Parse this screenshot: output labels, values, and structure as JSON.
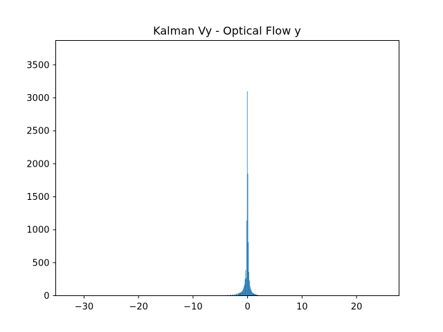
{
  "chart_data": {
    "type": "bar",
    "title": "Kalman Vy - Optical Flow y",
    "xlabel": "",
    "ylabel": "",
    "xlim": [
      -35.2,
      27.8
    ],
    "ylim": [
      0,
      3870
    ],
    "grid": false,
    "legend": "none",
    "bar_color": "#1f77b4",
    "x_ticks": [
      {
        "value": -30,
        "label": "−30"
      },
      {
        "value": -20,
        "label": "−20"
      },
      {
        "value": -10,
        "label": "−10"
      },
      {
        "value": 0,
        "label": "0"
      },
      {
        "value": 10,
        "label": "10"
      },
      {
        "value": 20,
        "label": "20"
      }
    ],
    "y_ticks": [
      {
        "value": 0,
        "label": "0"
      },
      {
        "value": 500,
        "label": "500"
      },
      {
        "value": 1000,
        "label": "1000"
      },
      {
        "value": 1500,
        "label": "1500"
      },
      {
        "value": 2000,
        "label": "2000"
      },
      {
        "value": 2500,
        "label": "2500"
      },
      {
        "value": 3000,
        "label": "3000"
      },
      {
        "value": 3500,
        "label": "3500"
      }
    ],
    "bins": [
      {
        "x0": -5.7,
        "x1": -5.5,
        "count": 4
      },
      {
        "x0": -5.1,
        "x1": -4.9,
        "count": 5
      },
      {
        "x0": -4.6,
        "x1": -4.4,
        "count": 6
      },
      {
        "x0": -4.1,
        "x1": -3.9,
        "count": 8
      },
      {
        "x0": -3.7,
        "x1": -3.5,
        "count": 10
      },
      {
        "x0": -3.2,
        "x1": -3.0,
        "count": 14
      },
      {
        "x0": -2.8,
        "x1": -2.6,
        "count": 18
      },
      {
        "x0": -2.4,
        "x1": -2.2,
        "count": 22
      },
      {
        "x0": -2.1,
        "x1": -1.9,
        "count": 28
      },
      {
        "x0": -1.8,
        "x1": -1.6,
        "count": 34
      },
      {
        "x0": -1.6,
        "x1": -1.4,
        "count": 40
      },
      {
        "x0": -1.4,
        "x1": -1.2,
        "count": 48
      },
      {
        "x0": -1.2,
        "x1": -1.0,
        "count": 60
      },
      {
        "x0": -1.0,
        "x1": -0.9,
        "count": 75
      },
      {
        "x0": -0.9,
        "x1": -0.8,
        "count": 90
      },
      {
        "x0": -0.8,
        "x1": -0.7,
        "count": 110
      },
      {
        "x0": -0.7,
        "x1": -0.6,
        "count": 140
      },
      {
        "x0": -0.6,
        "x1": -0.5,
        "count": 170
      },
      {
        "x0": -0.5,
        "x1": -0.4,
        "count": 250
      },
      {
        "x0": -0.4,
        "x1": -0.3,
        "count": 390
      },
      {
        "x0": -0.3,
        "x1": -0.2,
        "count": 270
      },
      {
        "x0": -0.2,
        "x1": -0.1,
        "count": 1140
      },
      {
        "x0": -0.1,
        "x1": 0.0,
        "count": 3100
      },
      {
        "x0": 0.0,
        "x1": 0.1,
        "count": 1850
      },
      {
        "x0": 0.1,
        "x1": 0.2,
        "count": 810
      },
      {
        "x0": 0.2,
        "x1": 0.3,
        "count": 360
      },
      {
        "x0": 0.3,
        "x1": 0.4,
        "count": 230
      },
      {
        "x0": 0.4,
        "x1": 0.5,
        "count": 150
      },
      {
        "x0": 0.5,
        "x1": 0.6,
        "count": 110
      },
      {
        "x0": 0.6,
        "x1": 0.7,
        "count": 85
      },
      {
        "x0": 0.7,
        "x1": 0.8,
        "count": 65
      },
      {
        "x0": 0.8,
        "x1": 0.9,
        "count": 52
      },
      {
        "x0": 0.9,
        "x1": 1.0,
        "count": 42
      },
      {
        "x0": 1.0,
        "x1": 1.2,
        "count": 34
      },
      {
        "x0": 1.2,
        "x1": 1.4,
        "count": 26
      },
      {
        "x0": 1.4,
        "x1": 1.6,
        "count": 20
      },
      {
        "x0": 1.6,
        "x1": 1.8,
        "count": 15
      },
      {
        "x0": 1.8,
        "x1": 2.0,
        "count": 10
      },
      {
        "x0": 2.2,
        "x1": 2.4,
        "count": 6
      }
    ]
  }
}
